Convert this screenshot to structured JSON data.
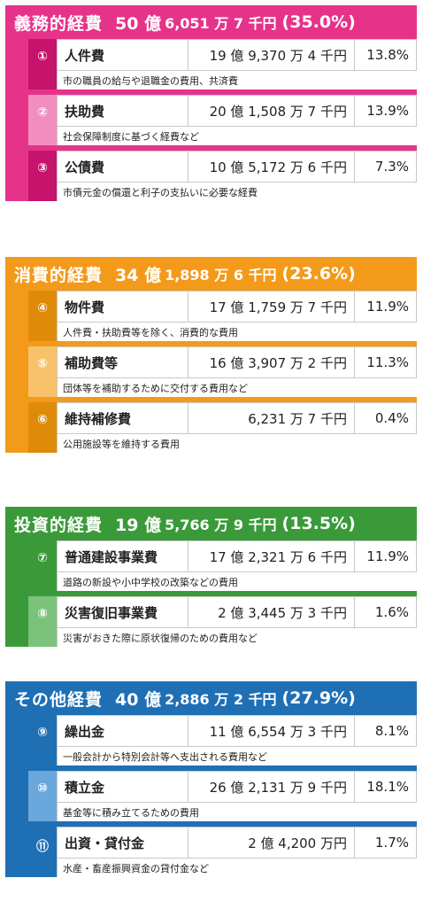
{
  "sections": [
    {
      "title": "義務的経費",
      "total_big": "50 億",
      "total_small": "6,051 万 7 千円",
      "total_pct": "(35.0%)",
      "color_main": "#e6338a",
      "color_light": "#f28dbf",
      "color_num": "#c6136b",
      "items": [
        {
          "num": "①",
          "name": "人件費",
          "amount": "19 億 9,370 万 4 千円",
          "pct": "13.8%",
          "desc": "市の職員の給与や退職金の費用、共済費"
        },
        {
          "num": "②",
          "name": "扶助費",
          "amount": "20 億 1,508 万 7 千円",
          "pct": "13.9%",
          "desc": "社会保障制度に基づく経費など"
        },
        {
          "num": "③",
          "name": "公債費",
          "amount": "10 億 5,172 万 6 千円",
          "pct": "7.3%",
          "desc": "市債元金の償還と利子の支払いに必要な経費"
        }
      ]
    },
    {
      "title": "消費的経費",
      "total_big": "34 億",
      "total_small": "1,898 万 6 千円",
      "total_pct": "(23.6%)",
      "color_main": "#f39a1a",
      "color_light": "#f8c26a",
      "color_num": "#e08a0a",
      "items": [
        {
          "num": "④",
          "name": "物件費",
          "amount": "17 億 1,759 万 7 千円",
          "pct": "11.9%",
          "desc": "人件費・扶助費等を除く、消費的な費用"
        },
        {
          "num": "⑤",
          "name": "補助費等",
          "amount": "16 億 3,907 万 2 千円",
          "pct": "11.3%",
          "desc": "団体等を補助するために交付する費用など"
        },
        {
          "num": "⑥",
          "name": "維持補修費",
          "amount": "6,231 万 7 千円",
          "pct": "0.4%",
          "desc": "公用施設等を維持する費用"
        }
      ]
    },
    {
      "title": "投資的経費",
      "total_big": "19 億",
      "total_small": "5,766 万 9 千円",
      "total_pct": "(13.5%)",
      "color_main": "#3a9a3a",
      "color_light": "#7bc27b",
      "color_num": "#3a9a3a",
      "items": [
        {
          "num": "⑦",
          "name": "普通建設事業費",
          "amount": "17 億 2,321 万 6 千円",
          "pct": "11.9%",
          "desc": "道路の新設や小中学校の改築などの費用"
        },
        {
          "num": "⑧",
          "name": "災害復旧事業費",
          "amount": "2 億 3,445 万 3 千円",
          "pct": "1.6%",
          "desc": "災害がおきた際に原状復帰のための費用など"
        }
      ]
    },
    {
      "title": "その他経費",
      "total_big": "40 億",
      "total_small": "2,886 万 2 千円",
      "total_pct": "(27.9%)",
      "color_main": "#1f6fb5",
      "color_light": "#6aa7dc",
      "color_num": "#1f6fb5",
      "items": [
        {
          "num": "⑨",
          "name": "繰出金",
          "amount": "11 億 6,554 万 3 千円",
          "pct": "8.1%",
          "desc": "一般会計から特別会計等へ支出される費用など"
        },
        {
          "num": "⑩",
          "name": "積立金",
          "amount": "26 億 2,131 万 9 千円",
          "pct": "18.1%",
          "desc": "基金等に積み立てるための費用"
        },
        {
          "num": "⑪",
          "name": "出資・貸付金",
          "amount": "2 億 4,200 万円",
          "pct": "1.7%",
          "desc": "水産・畜産振興資金の貸付金など"
        }
      ]
    }
  ]
}
